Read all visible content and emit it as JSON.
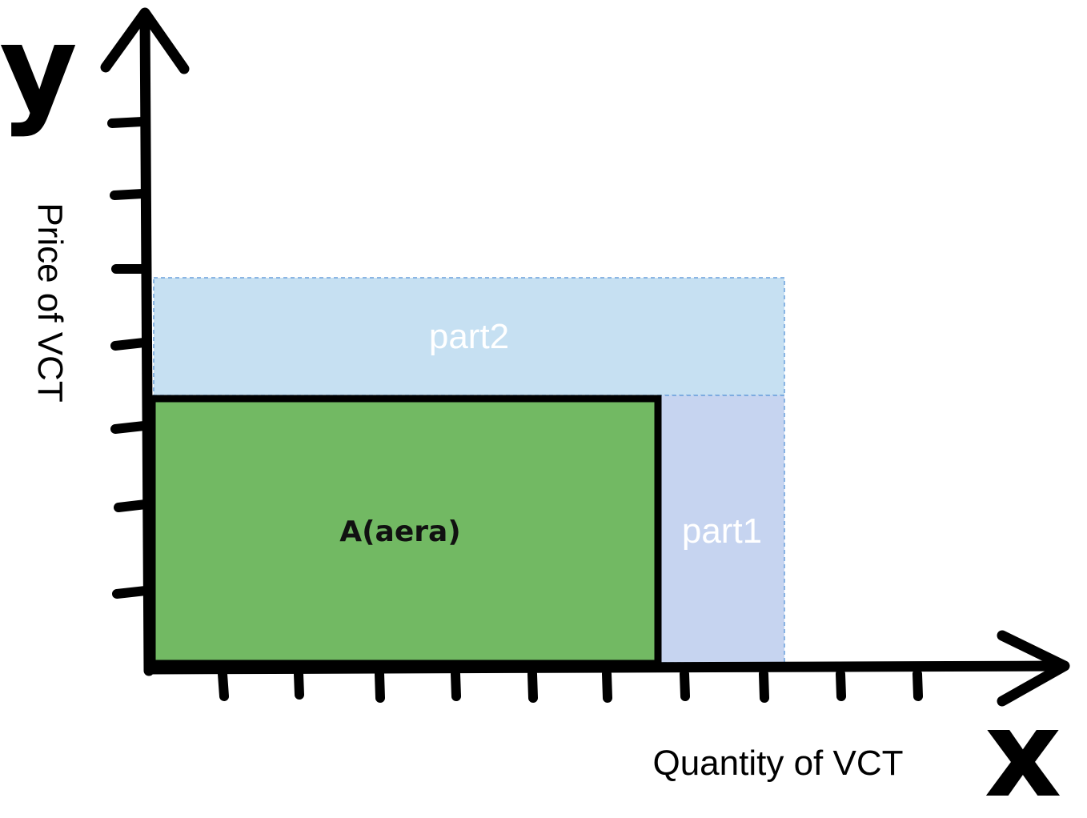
{
  "axes": {
    "y_letter": "y",
    "x_letter": "x",
    "y_title": "Price of VCT",
    "x_title": "Quantity of VCT"
  },
  "regions": {
    "area_label": "A(aera)",
    "part1_label": "part1",
    "part2_label": "part2"
  },
  "colors": {
    "area_fill": "#72b963",
    "part1_fill": "#c6d4f0",
    "part2_fill": "#c6e0f2",
    "dashed_border": "#6aa0dc",
    "axis": "#000000"
  }
}
